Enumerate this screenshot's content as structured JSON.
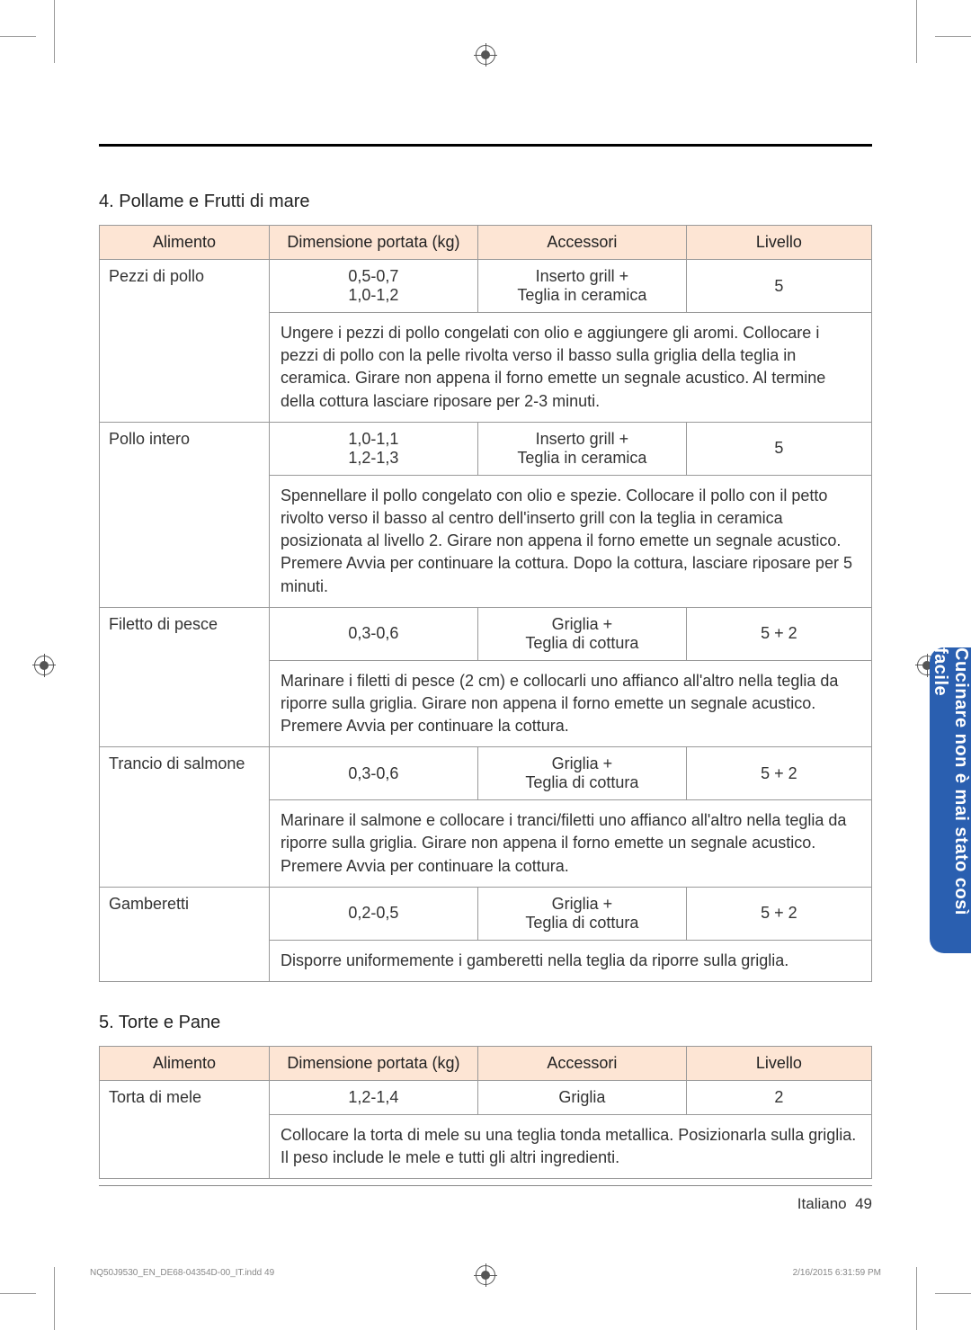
{
  "section4": {
    "title": "4. Pollame e Frutti di mare",
    "headers": [
      "Alimento",
      "Dimensione portata (kg)",
      "Accessori",
      "Livello"
    ],
    "rows": [
      {
        "food": "Pezzi di pollo",
        "dim1": "0,5-0,7",
        "dim2": "1,0-1,2",
        "acc1": "Inserto grill +",
        "acc2": "Teglia in ceramica",
        "lvl": "5",
        "desc": "Ungere i pezzi di pollo congelati con olio e aggiungere gli aromi. Collocare i pezzi di pollo con la pelle rivolta verso il basso sulla griglia della teglia in ceramica. Girare non appena il forno emette un segnale acustico. Al termine della cottura lasciare riposare per 2-3 minuti."
      },
      {
        "food": "Pollo intero",
        "dim1": "1,0-1,1",
        "dim2": "1,2-1,3",
        "acc1": "Inserto grill +",
        "acc2": "Teglia in ceramica",
        "lvl": "5",
        "desc": "Spennellare il pollo congelato con olio e spezie. Collocare il pollo con il petto rivolto verso il basso al centro dell'inserto grill con la teglia in ceramica posizionata al livello 2. Girare non appena il forno emette un segnale acustico. Premere Avvia per continuare la cottura. Dopo la cottura, lasciare riposare per 5 minuti."
      },
      {
        "food": "Filetto di pesce",
        "dim1": "0,3-0,6",
        "acc1": "Griglia +",
        "acc2": "Teglia di cottura",
        "lvl": "5 + 2",
        "desc": "Marinare i filetti di pesce (2 cm) e collocarli uno affianco all'altro nella teglia da riporre sulla griglia. Girare non appena il forno emette un segnale acustico. Premere Avvia per continuare la cottura."
      },
      {
        "food": "Trancio di salmone",
        "dim1": "0,3-0,6",
        "acc1": "Griglia +",
        "acc2": "Teglia di cottura",
        "lvl": "5 + 2",
        "desc": "Marinare il salmone e collocare i tranci/filetti uno affianco all'altro nella teglia da riporre sulla griglia. Girare non appena il forno emette un segnale acustico. Premere Avvia per continuare la cottura."
      },
      {
        "food": "Gamberetti",
        "dim1": "0,2-0,5",
        "acc1": "Griglia +",
        "acc2": "Teglia di cottura",
        "lvl": "5 + 2",
        "desc": "Disporre uniformemente i gamberetti nella teglia da riporre sulla griglia."
      }
    ]
  },
  "section5": {
    "title": "5. Torte e Pane",
    "headers": [
      "Alimento",
      "Dimensione portata (kg)",
      "Accessori",
      "Livello"
    ],
    "rows": [
      {
        "food": "Torta di mele",
        "dim1": "1,2-1,4",
        "acc1": "Griglia",
        "lvl": "2",
        "desc": "Collocare la torta di mele su una teglia tonda metallica. Posizionarla sulla griglia. Il peso include le mele e tutti gli altri ingredienti."
      }
    ]
  },
  "sideTab": "Cucinare non è mai stato così facile",
  "footer": {
    "lang": "Italiano",
    "page": "49"
  },
  "printFooter": {
    "left": "NQ50J9530_EN_DE68-04354D-00_IT.indd   49",
    "right": "2/16/2015   6:31:59 PM"
  },
  "colors": {
    "headerBg": "#fde5d4",
    "tabBg": "#2a5fb0",
    "border": "#999999"
  }
}
